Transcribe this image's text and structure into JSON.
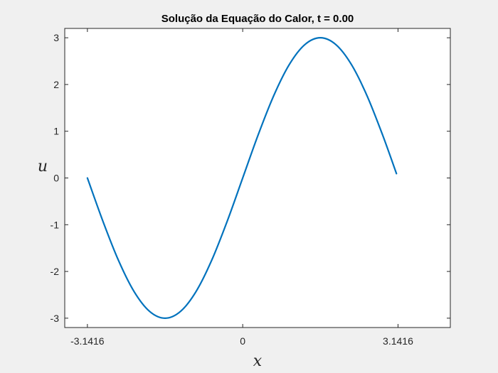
{
  "chart_data": {
    "type": "line",
    "title": "Solução da Equação do Calor, t = 0.00",
    "xlabel": "x",
    "ylabel": "u",
    "xlim": [
      -3.6,
      4.2
    ],
    "ylim": [
      -3.2,
      3.2
    ],
    "xticks": [
      -3.1416,
      0,
      3.1416
    ],
    "xtick_labels": [
      "-3.1416",
      "0",
      "3.1416"
    ],
    "yticks": [
      3,
      2,
      1,
      0,
      -1,
      -2,
      -3
    ],
    "ytick_labels": [
      "3",
      "2",
      "1",
      "0",
      "-1",
      "-2",
      "-3"
    ],
    "grid": false,
    "colors": {
      "line": "#0072BD",
      "axes_bg": "#ffffff",
      "figure_bg": "#f0f0f0"
    },
    "series": [
      {
        "x": [
          -3.1416,
          -2.8274,
          -2.5133,
          -2.1991,
          -1.885,
          -1.5708,
          -1.2566,
          -0.9425,
          -0.6283,
          -0.3142,
          0,
          0.3142,
          0.6283,
          0.9425,
          1.2566,
          1.5708,
          1.885,
          2.1991,
          2.5133,
          2.8274,
          3.1102
        ],
        "y": [
          0,
          -0.927,
          -1.763,
          -2.427,
          -2.853,
          -3,
          -2.853,
          -2.427,
          -1.763,
          -0.927,
          0,
          0.927,
          1.763,
          2.427,
          2.853,
          3,
          2.853,
          2.427,
          1.763,
          0.927,
          0.094
        ]
      }
    ]
  }
}
